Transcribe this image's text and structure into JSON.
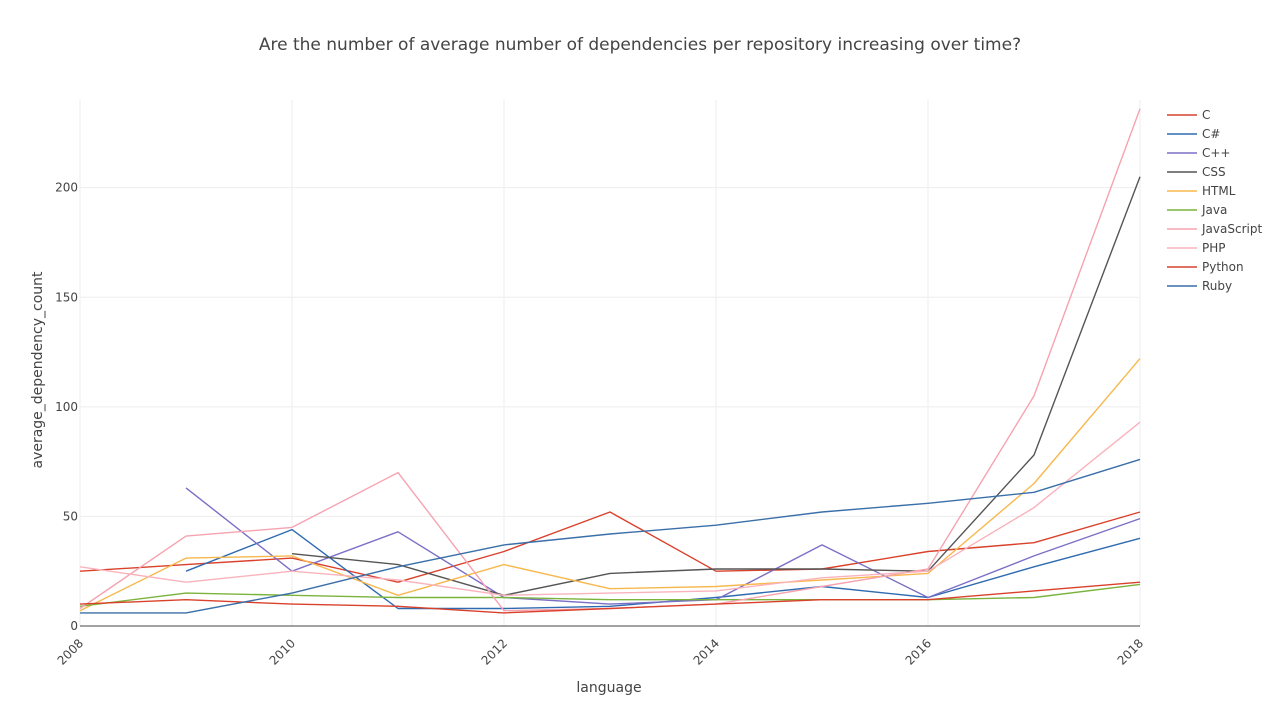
{
  "chart_data": {
    "type": "line",
    "title": "Are the number of average number of dependencies per repository increasing over time?",
    "xlabel": "language",
    "ylabel": "average_dependency_count",
    "xlim": [
      2008,
      2018
    ],
    "ylim": [
      0,
      240
    ],
    "x_ticks": [
      2008,
      2010,
      2012,
      2014,
      2016,
      2018
    ],
    "y_ticks": [
      0,
      50,
      100,
      150,
      200
    ],
    "grid": true,
    "legend_position": "top-right",
    "series": [
      {
        "name": "C",
        "color": "#d9412b",
        "points": [
          [
            2008,
            25
          ],
          [
            2009,
            28
          ],
          [
            2010,
            31
          ],
          [
            2011,
            20
          ],
          [
            2012,
            34
          ],
          [
            2013,
            52
          ],
          [
            2014,
            25
          ],
          [
            2015,
            26
          ],
          [
            2016,
            34
          ],
          [
            2017,
            38
          ],
          [
            2018,
            52
          ]
        ]
      },
      {
        "name": "C#",
        "color": "#2f6bb0",
        "points": [
          [
            2009,
            25
          ],
          [
            2010,
            44
          ],
          [
            2011,
            8
          ],
          [
            2012,
            8
          ],
          [
            2013,
            9
          ],
          [
            2014,
            13
          ],
          [
            2015,
            18
          ],
          [
            2016,
            13
          ],
          [
            2017,
            27
          ],
          [
            2018,
            40
          ]
        ]
      },
      {
        "name": "C++",
        "color": "#7b6fc6",
        "points": [
          [
            2009,
            63
          ],
          [
            2010,
            25
          ],
          [
            2011,
            43
          ],
          [
            2012,
            13
          ],
          [
            2013,
            10
          ],
          [
            2014,
            12
          ],
          [
            2015,
            37
          ],
          [
            2016,
            13
          ],
          [
            2017,
            32
          ],
          [
            2018,
            49
          ]
        ]
      },
      {
        "name": "CSS",
        "color": "#555555",
        "points": [
          [
            2010,
            33
          ],
          [
            2011,
            28
          ],
          [
            2012,
            14
          ],
          [
            2013,
            24
          ],
          [
            2014,
            26
          ],
          [
            2015,
            26
          ],
          [
            2016,
            25
          ],
          [
            2017,
            78
          ],
          [
            2018,
            205
          ]
        ]
      },
      {
        "name": "HTML",
        "color": "#f7b84e",
        "points": [
          [
            2008,
            7
          ],
          [
            2009,
            31
          ],
          [
            2010,
            32
          ],
          [
            2011,
            14
          ],
          [
            2012,
            28
          ],
          [
            2013,
            17
          ],
          [
            2014,
            18
          ],
          [
            2015,
            21
          ],
          [
            2016,
            24
          ],
          [
            2017,
            65
          ],
          [
            2018,
            122
          ]
        ]
      },
      {
        "name": "Java",
        "color": "#7bb33c",
        "points": [
          [
            2008,
            9
          ],
          [
            2009,
            15
          ],
          [
            2010,
            14
          ],
          [
            2011,
            13
          ],
          [
            2012,
            13
          ],
          [
            2013,
            12
          ],
          [
            2014,
            12
          ],
          [
            2015,
            12
          ],
          [
            2016,
            12
          ],
          [
            2017,
            13
          ],
          [
            2018,
            19
          ]
        ]
      },
      {
        "name": "JavaScript",
        "color": "#f6a3b0",
        "points": [
          [
            2008,
            8
          ],
          [
            2009,
            41
          ],
          [
            2010,
            45
          ],
          [
            2011,
            70
          ],
          [
            2012,
            7
          ],
          [
            2013,
            8
          ],
          [
            2014,
            10
          ],
          [
            2015,
            18
          ],
          [
            2016,
            26
          ],
          [
            2017,
            105
          ],
          [
            2018,
            236
          ]
        ]
      },
      {
        "name": "PHP",
        "color": "#f9b3bd",
        "points": [
          [
            2008,
            27
          ],
          [
            2009,
            20
          ],
          [
            2010,
            25
          ],
          [
            2011,
            21
          ],
          [
            2012,
            14
          ],
          [
            2013,
            15
          ],
          [
            2014,
            16
          ],
          [
            2015,
            22
          ],
          [
            2016,
            25
          ],
          [
            2017,
            54
          ],
          [
            2018,
            93
          ]
        ]
      },
      {
        "name": "Python",
        "color": "#d9412b",
        "points": [
          [
            2008,
            10
          ],
          [
            2009,
            12
          ],
          [
            2010,
            10
          ],
          [
            2011,
            9
          ],
          [
            2012,
            6
          ],
          [
            2013,
            8
          ],
          [
            2014,
            10
          ],
          [
            2015,
            12
          ],
          [
            2016,
            12
          ],
          [
            2017,
            16
          ],
          [
            2018,
            20
          ]
        ]
      },
      {
        "name": "Ruby",
        "color": "#3a6fa8",
        "points": [
          [
            2008,
            6
          ],
          [
            2009,
            6
          ],
          [
            2010,
            15
          ],
          [
            2011,
            27
          ],
          [
            2012,
            37
          ],
          [
            2013,
            42
          ],
          [
            2014,
            46
          ],
          [
            2015,
            52
          ],
          [
            2016,
            56
          ],
          [
            2017,
            61
          ],
          [
            2018,
            76
          ]
        ]
      }
    ]
  }
}
